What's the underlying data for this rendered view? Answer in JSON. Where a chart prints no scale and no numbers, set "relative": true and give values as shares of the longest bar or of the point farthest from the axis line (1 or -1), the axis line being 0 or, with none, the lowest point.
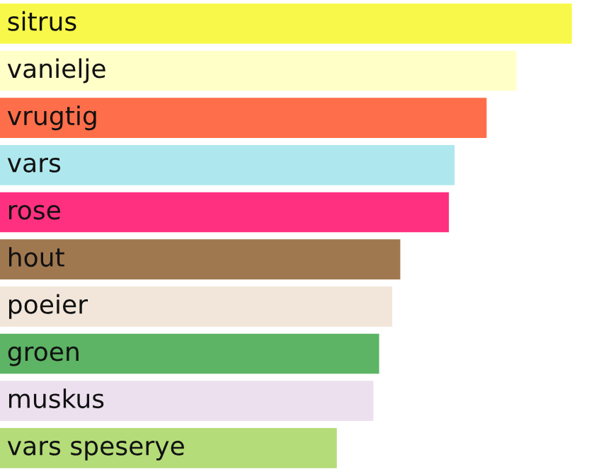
{
  "chart_data": {
    "type": "bar",
    "orientation": "horizontal",
    "relative": true,
    "categories": [
      "sitrus",
      "vanielje",
      "vrugtig",
      "vars",
      "rose",
      "hout",
      "poeier",
      "groen",
      "muskus",
      "vars speserye"
    ],
    "values": [
      1,
      0.903,
      0.851,
      0.795,
      0.785,
      0.7,
      0.686,
      0.663,
      0.653,
      0.589
    ],
    "colors": [
      "#f8f84a",
      "#ffffc8",
      "#ff6e4a",
      "#aee8ee",
      "#ff3080",
      "#a07850",
      "#f2e6da",
      "#5cb464",
      "#ece0ee",
      "#b4dc78"
    ],
    "legend": false
  }
}
